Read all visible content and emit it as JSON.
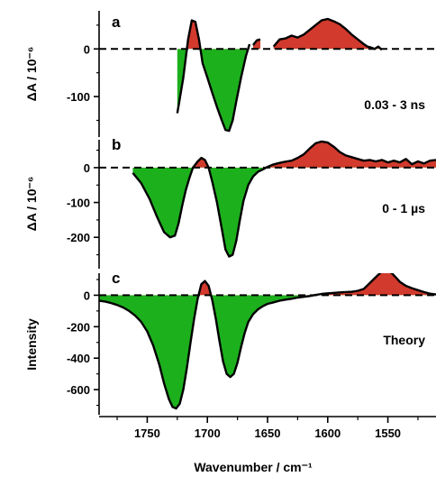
{
  "chart_data": {
    "type": "area",
    "colors": {
      "positive": "#d13a2c",
      "negative": "#1db01d",
      "outline": "#000000"
    },
    "x_axis": {
      "label": "Wavenumber / cm⁻¹",
      "range": [
        1790,
        1510
      ],
      "reversed": true,
      "ticks": [
        1750,
        1700,
        1650,
        1600,
        1550
      ],
      "tick_labels": [
        "1750",
        "1700",
        "1650",
        "1600",
        "1550"
      ]
    },
    "panels": [
      {
        "letter": "a",
        "ylabel": "ΔA / 10⁻⁶",
        "annotation": "0.03 - 3 ns",
        "ylim": [
          -185,
          80
        ],
        "yticks": [
          0,
          -100
        ],
        "ytick_labels": [
          "0",
          "-100"
        ],
        "segments": [
          {
            "x": [
              1725,
              1724,
              1720,
              1716,
              1713,
              1710,
              1707,
              1704,
              1700,
              1696,
              1692,
              1688,
              1685,
              1682,
              1679,
              1676,
              1672,
              1668,
              1665
            ],
            "y": [
              -135,
              -120,
              -60,
              20,
              60,
              57,
              20,
              -30,
              -60,
              -92,
              -122,
              -150,
              -170,
              -172,
              -150,
              -110,
              -60,
              -15,
              10
            ]
          },
          {
            "x": [
              1662,
              1659,
              1656
            ],
            "y": [
              8,
              18,
              20
            ]
          },
          {
            "x": [
              1645,
              1640,
              1635,
              1630,
              1625,
              1620,
              1615,
              1610,
              1605,
              1600,
              1595,
              1590,
              1585,
              1580,
              1575,
              1570,
              1567,
              1564,
              1561,
              1558,
              1555
            ],
            "y": [
              5,
              20,
              22,
              28,
              24,
              30,
              40,
              50,
              60,
              63,
              58,
              52,
              42,
              30,
              20,
              10,
              5,
              3,
              0,
              5,
              -2
            ]
          }
        ]
      },
      {
        "letter": "b",
        "ylabel": "ΔA / 10⁻⁶",
        "annotation": "0 - 1 µs",
        "ylim": [
          -290,
          80
        ],
        "yticks": [
          0,
          -100,
          -200
        ],
        "ytick_labels": [
          "0",
          "-100",
          "-200"
        ],
        "segments": [
          {
            "x": [
              1762,
              1755,
              1748,
              1742,
              1736,
              1731,
              1727,
              1724,
              1721,
              1718,
              1715,
              1712,
              1708,
              1705,
              1702,
              1699,
              1696,
              1692,
              1688,
              1685,
              1682,
              1679,
              1676,
              1673,
              1670,
              1666,
              1662,
              1658,
              1654,
              1650,
              1646,
              1642,
              1638,
              1634,
              1630,
              1625,
              1620,
              1615,
              1610,
              1605,
              1600,
              1595,
              1590,
              1585,
              1580,
              1575,
              1570,
              1565,
              1560,
              1555,
              1550,
              1545,
              1540,
              1535,
              1530,
              1525,
              1520,
              1515,
              1510
            ],
            "y": [
              -15,
              -45,
              -90,
              -140,
              -185,
              -200,
              -195,
              -160,
              -110,
              -65,
              -30,
              0,
              18,
              28,
              22,
              0,
              -40,
              -100,
              -175,
              -235,
              -255,
              -250,
              -210,
              -150,
              -95,
              -50,
              -25,
              -12,
              -5,
              2,
              8,
              12,
              15,
              18,
              20,
              28,
              38,
              55,
              70,
              75,
              72,
              60,
              45,
              35,
              30,
              25,
              20,
              22,
              18,
              22,
              15,
              20,
              15,
              25,
              10,
              18,
              12,
              20,
              22
            ]
          }
        ]
      },
      {
        "letter": "c",
        "ylabel": "Intensity",
        "annotation": "Theory",
        "ylim": [
          -760,
          140
        ],
        "yticks": [
          0,
          -200,
          -400,
          -600
        ],
        "ytick_labels": [
          "0",
          "-200",
          "-400",
          "-600"
        ],
        "segments": [
          {
            "x": [
              1790,
              1785,
              1780,
              1775,
              1770,
              1765,
              1760,
              1755,
              1750,
              1745,
              1740,
              1736,
              1732,
              1729,
              1726,
              1723,
              1720,
              1717,
              1714,
              1711,
              1708,
              1705,
              1702,
              1699,
              1696,
              1693,
              1690,
              1687,
              1684,
              1681,
              1678,
              1675,
              1672,
              1669,
              1666,
              1662,
              1658,
              1654,
              1650,
              1645,
              1640,
              1635,
              1630,
              1625,
              1620,
              1615,
              1610,
              1605,
              1600,
              1595,
              1590,
              1585,
              1580,
              1575,
              1570,
              1566,
              1562,
              1558,
              1555,
              1552,
              1549,
              1546,
              1543,
              1540,
              1535,
              1530,
              1525,
              1520,
              1515,
              1510
            ],
            "y": [
              -35,
              -40,
              -50,
              -62,
              -78,
              -100,
              -130,
              -170,
              -230,
              -320,
              -440,
              -560,
              -660,
              -710,
              -720,
              -690,
              -600,
              -460,
              -300,
              -150,
              -20,
              70,
              90,
              60,
              -30,
              -150,
              -290,
              -420,
              -500,
              -520,
              -500,
              -430,
              -330,
              -240,
              -170,
              -120,
              -90,
              -70,
              -55,
              -45,
              -35,
              -28,
              -22,
              -15,
              -10,
              -5,
              2,
              8,
              12,
              15,
              18,
              20,
              22,
              28,
              40,
              70,
              100,
              130,
              150,
              160,
              155,
              135,
              110,
              85,
              60,
              45,
              32,
              20,
              10,
              5
            ]
          }
        ]
      }
    ]
  }
}
